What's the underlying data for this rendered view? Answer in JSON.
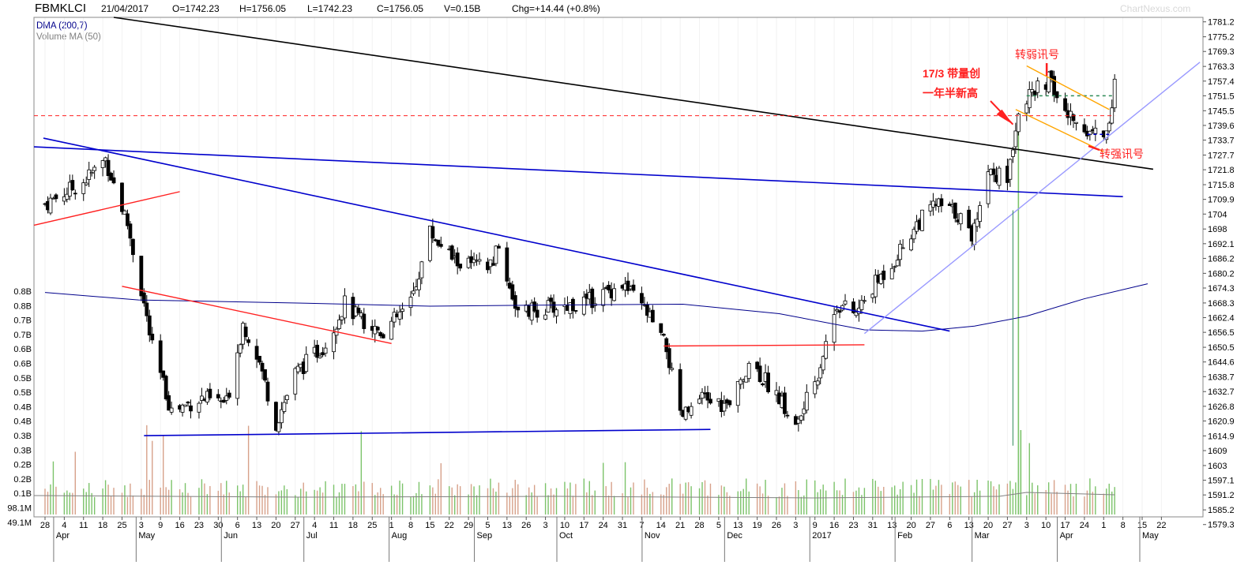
{
  "header": {
    "symbol": "FBMKLCI",
    "date": "21/04/2017",
    "open": "O=1742.23",
    "high": "H=1756.05",
    "low": "L=1742.23",
    "close": "C=1756.05",
    "volume": "V=0.15B",
    "change": "Chg=+14.44 (+0.8%)",
    "brand": "ChartNexus.com"
  },
  "legend": {
    "dma": "DMA (200,7)",
    "vma": "Volume MA (50)"
  },
  "colors": {
    "dma": "#00008b",
    "vma": "#808080",
    "trend_blue": "#0000cc",
    "trend_black": "#000000",
    "trend_red": "#ff2020",
    "channel_orange": "#ffa500",
    "support_lightblue": "#9999ff",
    "annotation_red": "#ff2020",
    "vol_up": "#7cc36a",
    "vol_down": "#d7a18a"
  },
  "annotations": {
    "breakout_line1": "17/3 带量创",
    "breakout_line2": "一年半新高",
    "weak_signal": "转弱讯号",
    "strong_signal": "转强讯号"
  },
  "chart_data": {
    "type": "candlestick",
    "y_price_axis": {
      "ticks": [
        "1781.2",
        "1775.2",
        "1769.3",
        "1763.3",
        "1757.4",
        "1751.5",
        "1745.5",
        "1739.6",
        "1733.7",
        "1727.7",
        "1721.8",
        "1715.8",
        "1709.9",
        "1704",
        "1698",
        "1692.1",
        "1686.2",
        "1680.2",
        "1674.3",
        "1668.3",
        "1662.4",
        "1656.5",
        "1650.5",
        "1644.6",
        "1638.7",
        "1632.7",
        "1626.8",
        "1620.9",
        "1614.9",
        "1609",
        "1603",
        "1597.1",
        "1591.2",
        "1585.2",
        "1579.3"
      ],
      "range": [
        1577.0,
        1783.0
      ]
    },
    "y_volume_axis": {
      "ticks": [
        "0.8B",
        "0.8B",
        "0.7B",
        "0.7B",
        "0.6B",
        "0.6B",
        "0.5B",
        "0.5B",
        "0.4B",
        "0.4B",
        "0.3B",
        "0.3B",
        "0.2B",
        "0.2B",
        "0.1B",
        "98.1M",
        "49.1M"
      ]
    },
    "x_axis": {
      "ticks": [
        "28",
        "4",
        "11",
        "18",
        "25",
        "3",
        "9",
        "16",
        "23",
        "30",
        "6",
        "13",
        "20",
        "27",
        "4",
        "11",
        "18",
        "25",
        "1",
        "8",
        "15",
        "22",
        "29",
        "5",
        "13",
        "26",
        "3",
        "10",
        "17",
        "24",
        "31",
        "7",
        "14",
        "21",
        "28",
        "5",
        "13",
        "19",
        "26",
        "3",
        "9",
        "16",
        "23",
        "31",
        "13",
        "20",
        "27",
        "6",
        "13",
        "20",
        "27",
        "3",
        "10",
        "17",
        "24",
        "1",
        "8",
        "15",
        "22"
      ],
      "months": [
        "Apr",
        "May",
        "Jun",
        "Jul",
        "Aug",
        "Sep",
        "Oct",
        "Nov",
        "Dec",
        "2017",
        "Feb",
        "Mar",
        "Apr",
        "May"
      ]
    },
    "series": [
      {
        "name": "DMA (200,7)",
        "role": "price moving average"
      },
      {
        "name": "Volume MA (50)",
        "role": "volume moving average"
      }
    ],
    "key_points": {
      "period_start": {
        "date": "2016-03-28",
        "price": 1708
      },
      "low_may": {
        "date": "2016-05-13",
        "price": 1616
      },
      "low_jun": {
        "date": "2016-06-20",
        "price": 1614
      },
      "high_aug": {
        "date": "2016-08-15",
        "price": 1700
      },
      "low_nov": {
        "date": "2016-11-14",
        "price": 1615
      },
      "low_dec": {
        "date": "2016-12-26",
        "price": 1616
      },
      "breakout": {
        "date": "2017-03-17",
        "price": 1747
      },
      "peak": {
        "date": "2017-03-28",
        "price": 1760
      },
      "last": {
        "date": "2017-04-21",
        "price": 1756.05
      }
    }
  }
}
